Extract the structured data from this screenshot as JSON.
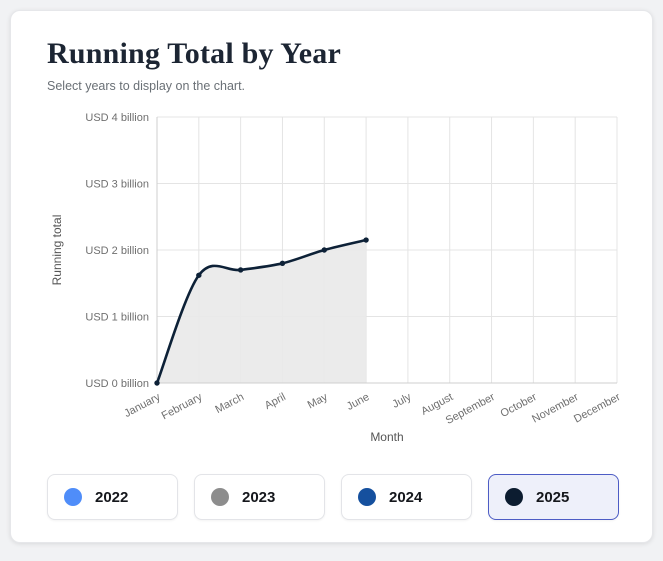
{
  "page": {
    "title": "Running Total by Year",
    "subtitle": "Select years to display on the chart."
  },
  "chart_data": {
    "type": "area",
    "title": "Running Total by Year",
    "xlabel": "Month",
    "ylabel": "Running total",
    "categories": [
      "January",
      "February",
      "March",
      "April",
      "May",
      "June",
      "July",
      "August",
      "September",
      "October",
      "November",
      "December"
    ],
    "y_tick_labels": [
      "USD 0 billion",
      "USD 1 billion",
      "USD 2 billion",
      "USD 3 billion",
      "USD 4 billion"
    ],
    "ylim": [
      0,
      4
    ],
    "grid": true,
    "legend_position": "bottom",
    "series": [
      {
        "name": "2025",
        "color": "#0d2137",
        "fill": "#e9e9e9",
        "x": [
          "January",
          "February",
          "March",
          "April",
          "May",
          "June"
        ],
        "values": [
          0,
          1.62,
          1.7,
          1.8,
          2.0,
          2.15
        ],
        "unit": "USD billion"
      }
    ]
  },
  "legend": {
    "items": [
      {
        "label": "2022",
        "color": "#4f8df9",
        "selected": false
      },
      {
        "label": "2023",
        "color": "#8d8d8d",
        "selected": false
      },
      {
        "label": "2024",
        "color": "#15509e",
        "selected": false
      },
      {
        "label": "2025",
        "color": "#0c1c30",
        "selected": true
      }
    ]
  }
}
